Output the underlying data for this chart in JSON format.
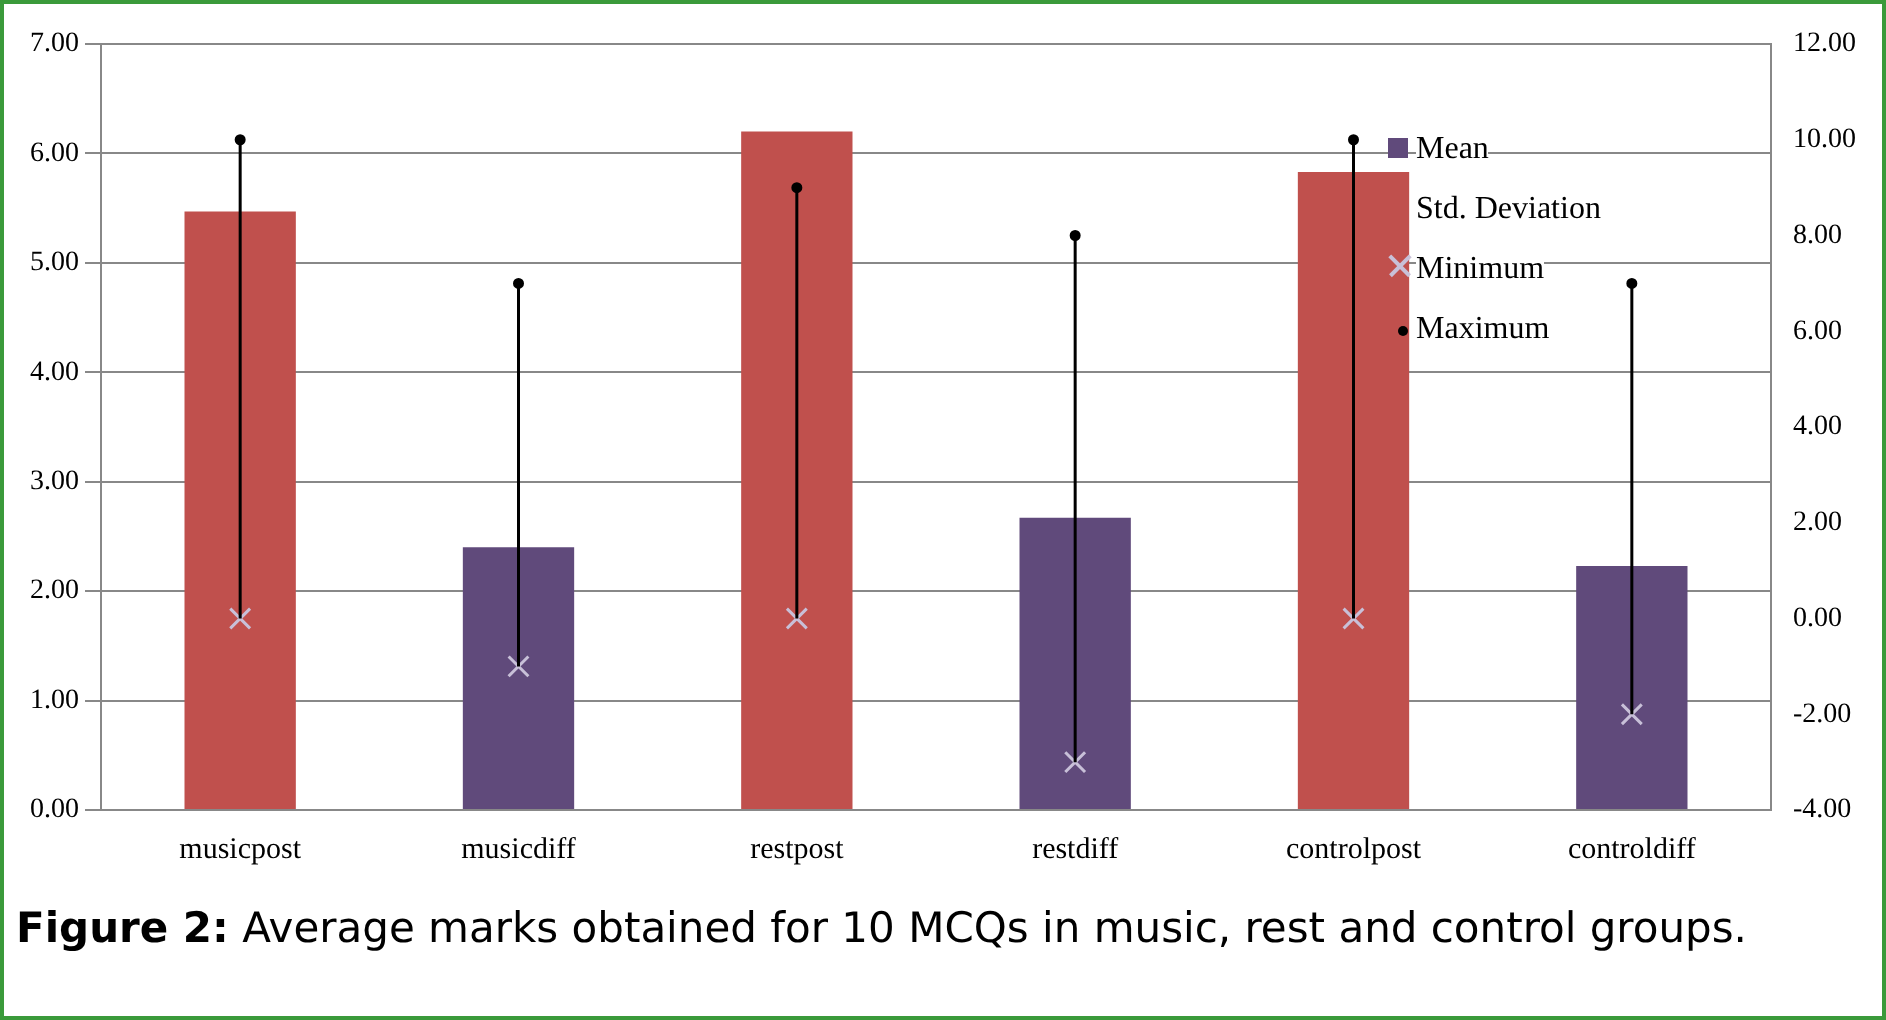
{
  "chart_data": {
    "type": "bar",
    "categories": [
      "musicpost",
      "musicdiff",
      "restpost",
      "restdiff",
      "controlpost",
      "controldiff"
    ],
    "series": [
      {
        "name": "Mean",
        "color": "#604a7b",
        "colors": [
          "#c0504d",
          "#604a7b",
          "#c0504d",
          "#604a7b",
          "#c0504d",
          "#604a7b"
        ],
        "values": [
          5.47,
          2.4,
          6.2,
          2.67,
          5.83,
          2.23
        ]
      },
      {
        "name": "Std. Deviation",
        "type": "line",
        "values": [
          null,
          null,
          null,
          null,
          null,
          null
        ]
      },
      {
        "name": "Minimum",
        "type": "scatter",
        "axis": "y2",
        "marker": "cross",
        "color": "#c8c0d8",
        "values": [
          0,
          -1,
          0,
          -3,
          0,
          -2
        ]
      },
      {
        "name": "Maximum",
        "type": "scatter",
        "axis": "y2",
        "marker": "circle",
        "color": "#000000",
        "values": [
          10,
          7,
          9,
          8,
          10,
          7
        ]
      }
    ],
    "ylim": [
      0,
      7
    ],
    "yticks": [
      {
        "value": 0,
        "label": "0.00"
      },
      {
        "value": 1,
        "label": "1.00"
      },
      {
        "value": 2,
        "label": "2.00"
      },
      {
        "value": 3,
        "label": "3.00"
      },
      {
        "value": 4,
        "label": "4.00"
      },
      {
        "value": 5,
        "label": "5.00"
      },
      {
        "value": 6,
        "label": "6.00"
      },
      {
        "value": 7,
        "label": "7.00"
      }
    ],
    "y2lim": [
      -4,
      12
    ],
    "y2ticks": [
      {
        "value": -4,
        "label": "-4.00"
      },
      {
        "value": -2,
        "label": "-2.00"
      },
      {
        "value": 0,
        "label": "0.00"
      },
      {
        "value": 2,
        "label": "2.00"
      },
      {
        "value": 4,
        "label": "4.00"
      },
      {
        "value": 6,
        "label": "6.00"
      },
      {
        "value": 8,
        "label": "8.00"
      },
      {
        "value": 10,
        "label": "10.00"
      },
      {
        "value": 12,
        "label": "12.00"
      }
    ],
    "grid": "y",
    "legend": "top right",
    "annotations": [
      "Figure 2: Average marks obtained for 10 MCQs in music, rest and control groups."
    ]
  }
}
